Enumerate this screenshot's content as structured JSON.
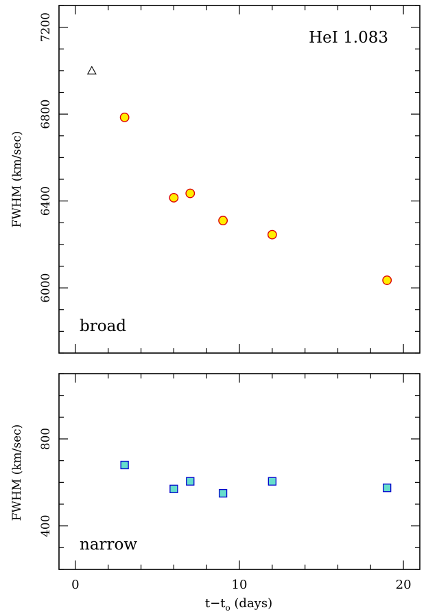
{
  "chart_data": [
    {
      "type": "scatter",
      "panel": "top",
      "title": "HeI  1.083",
      "panel_label": "broad",
      "xlabel": "",
      "ylabel": "FWHM (km/sec)",
      "xlim": [
        -1,
        21
      ],
      "ylim": [
        5700,
        7300
      ],
      "yticks": [
        6000,
        6400,
        6800,
        7200
      ],
      "grid": false,
      "series": [
        {
          "marker": "circle",
          "color": "#ffee00",
          "edge_color": "#dd0000",
          "x": [
            3,
            6,
            7,
            9,
            12,
            19
          ],
          "y": [
            6785,
            6415,
            6435,
            6310,
            6245,
            6035
          ]
        },
        {
          "marker": "open-triangle",
          "color": "#000000",
          "x": [
            1
          ],
          "y": [
            7000
          ]
        }
      ]
    },
    {
      "type": "scatter",
      "panel": "bottom",
      "panel_label": "narrow",
      "xlabel": "t−t",
      "xlabel_sub": "o",
      "xlabel_tail": " (days)",
      "ylabel": "FWHM (km/sec)",
      "xlim": [
        -1,
        21
      ],
      "ylim": [
        200,
        1100
      ],
      "xticks": [
        0,
        10,
        20
      ],
      "yticks": [
        400,
        800
      ],
      "grid": false,
      "series": [
        {
          "marker": "square",
          "color": "#66ddcc",
          "edge_color": "#0000cc",
          "x": [
            3,
            6,
            7,
            9,
            12,
            19
          ],
          "y": [
            680,
            570,
            605,
            550,
            605,
            575
          ]
        }
      ]
    }
  ]
}
